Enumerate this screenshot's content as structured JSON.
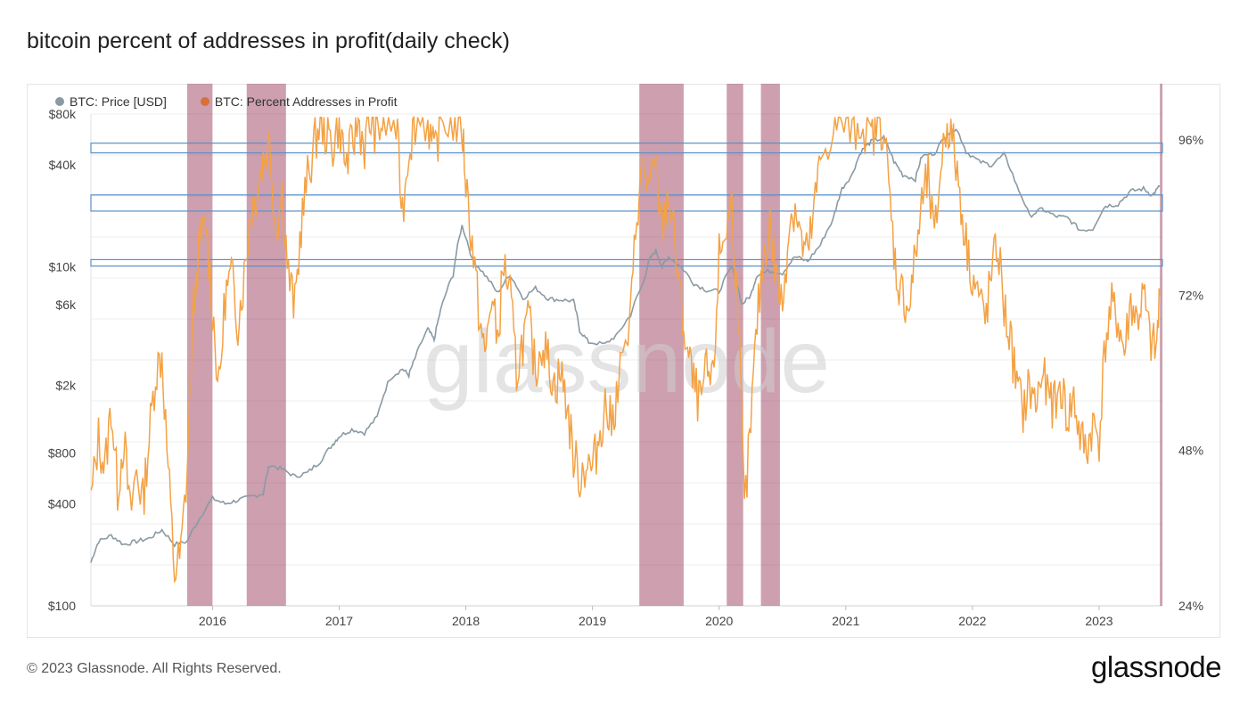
{
  "title": "bitcoin percent of addresses in profit(daily check)",
  "footer": {
    "copyright": "© 2023 Glassnode. All Rights Reserved.",
    "brand": "glassnode"
  },
  "watermark": "glassnode",
  "colors": {
    "price": "#8a9aa3",
    "percent": "#f4a244",
    "percent_legend": "#d9703a",
    "highlight": "#a4506e",
    "box_stroke": "#5b8fc7",
    "grid": "#ececec"
  },
  "chart_data": {
    "type": "line",
    "legend": [
      {
        "name": "BTC: Price [USD]",
        "color": "#8a9aa3"
      },
      {
        "name": "BTC: Percent Addresses in Profit",
        "color": "#d9703a"
      }
    ],
    "x_ticks": [
      "2016",
      "2017",
      "2018",
      "2019",
      "2020",
      "2021",
      "2022",
      "2023"
    ],
    "x_range": [
      2015.04,
      2023.5
    ],
    "y_left": {
      "scale": "log",
      "range": [
        100,
        80000
      ],
      "tick_values": [
        100,
        400,
        800,
        2000,
        6000,
        10000,
        40000,
        80000
      ],
      "tick_labels": [
        "$100",
        "$400",
        "$800",
        "$2k",
        "$6k",
        "$10k",
        "$40k",
        "$80k"
      ]
    },
    "y_right": {
      "range": [
        24,
        100
      ],
      "tick_values": [
        24,
        48,
        72,
        96
      ],
      "tick_labels": [
        "24%",
        "48%",
        "72%",
        "96%"
      ]
    },
    "series": [
      {
        "name": "BTC: Price [USD]",
        "axis": "left",
        "points": [
          [
            2015.04,
            180
          ],
          [
            2015.1,
            240
          ],
          [
            2015.2,
            260
          ],
          [
            2015.3,
            230
          ],
          [
            2015.4,
            240
          ],
          [
            2015.5,
            250
          ],
          [
            2015.6,
            280
          ],
          [
            2015.7,
            230
          ],
          [
            2015.8,
            240
          ],
          [
            2015.9,
            330
          ],
          [
            2016.0,
            430
          ],
          [
            2016.1,
            400
          ],
          [
            2016.2,
            420
          ],
          [
            2016.3,
            440
          ],
          [
            2016.4,
            460
          ],
          [
            2016.45,
            680
          ],
          [
            2016.55,
            640
          ],
          [
            2016.65,
            580
          ],
          [
            2016.75,
            610
          ],
          [
            2016.85,
            710
          ],
          [
            2016.95,
            900
          ],
          [
            2017.0,
            1000
          ],
          [
            2017.1,
            1100
          ],
          [
            2017.2,
            1050
          ],
          [
            2017.3,
            1300
          ],
          [
            2017.4,
            2200
          ],
          [
            2017.5,
            2500
          ],
          [
            2017.55,
            2300
          ],
          [
            2017.6,
            2900
          ],
          [
            2017.7,
            4300
          ],
          [
            2017.75,
            3700
          ],
          [
            2017.8,
            5500
          ],
          [
            2017.9,
            9000
          ],
          [
            2017.97,
            17500
          ],
          [
            2018.05,
            11000
          ],
          [
            2018.15,
            9000
          ],
          [
            2018.25,
            7000
          ],
          [
            2018.35,
            9000
          ],
          [
            2018.45,
            6500
          ],
          [
            2018.55,
            7500
          ],
          [
            2018.65,
            6500
          ],
          [
            2018.75,
            6400
          ],
          [
            2018.85,
            6300
          ],
          [
            2018.9,
            4200
          ],
          [
            2018.97,
            3600
          ],
          [
            2019.1,
            3500
          ],
          [
            2019.2,
            4000
          ],
          [
            2019.3,
            5200
          ],
          [
            2019.4,
            8000
          ],
          [
            2019.45,
            11000
          ],
          [
            2019.5,
            12500
          ],
          [
            2019.55,
            10000
          ],
          [
            2019.6,
            11500
          ],
          [
            2019.7,
            10000
          ],
          [
            2019.8,
            8000
          ],
          [
            2019.9,
            7300
          ],
          [
            2020.0,
            7200
          ],
          [
            2020.1,
            10000
          ],
          [
            2020.18,
            6000
          ],
          [
            2020.25,
            6800
          ],
          [
            2020.3,
            9000
          ],
          [
            2020.4,
            9500
          ],
          [
            2020.5,
            9200
          ],
          [
            2020.6,
            11500
          ],
          [
            2020.7,
            10800
          ],
          [
            2020.8,
            13500
          ],
          [
            2020.9,
            19000
          ],
          [
            2020.97,
            29000
          ],
          [
            2021.05,
            35000
          ],
          [
            2021.12,
            48000
          ],
          [
            2021.2,
            55000
          ],
          [
            2021.3,
            58000
          ],
          [
            2021.38,
            42000
          ],
          [
            2021.45,
            35000
          ],
          [
            2021.55,
            33000
          ],
          [
            2021.6,
            45000
          ],
          [
            2021.7,
            47000
          ],
          [
            2021.8,
            61000
          ],
          [
            2021.87,
            66000
          ],
          [
            2021.95,
            48000
          ],
          [
            2022.05,
            42000
          ],
          [
            2022.15,
            40000
          ],
          [
            2022.25,
            46000
          ],
          [
            2022.35,
            30000
          ],
          [
            2022.45,
            20000
          ],
          [
            2022.55,
            22000
          ],
          [
            2022.65,
            20000
          ],
          [
            2022.75,
            19500
          ],
          [
            2022.85,
            16500
          ],
          [
            2022.95,
            16800
          ],
          [
            2023.05,
            23000
          ],
          [
            2023.15,
            23500
          ],
          [
            2023.25,
            28000
          ],
          [
            2023.35,
            29000
          ],
          [
            2023.42,
            26500
          ],
          [
            2023.48,
            30000
          ]
        ]
      },
      {
        "name": "BTC: Percent Addresses in Profit",
        "axis": "right",
        "points": [
          [
            2015.04,
            40
          ],
          [
            2015.1,
            50
          ],
          [
            2015.15,
            45
          ],
          [
            2015.2,
            55
          ],
          [
            2015.25,
            42
          ],
          [
            2015.3,
            50
          ],
          [
            2015.35,
            38
          ],
          [
            2015.4,
            45
          ],
          [
            2015.45,
            40
          ],
          [
            2015.5,
            50
          ],
          [
            2015.55,
            60
          ],
          [
            2015.6,
            63
          ],
          [
            2015.65,
            45
          ],
          [
            2015.7,
            29
          ],
          [
            2015.75,
            32
          ],
          [
            2015.8,
            45
          ],
          [
            2015.85,
            70
          ],
          [
            2015.9,
            80
          ],
          [
            2015.95,
            83
          ],
          [
            2016.0,
            70
          ],
          [
            2016.05,
            57
          ],
          [
            2016.1,
            72
          ],
          [
            2016.15,
            75
          ],
          [
            2016.2,
            68
          ],
          [
            2016.25,
            75
          ],
          [
            2016.3,
            85
          ],
          [
            2016.35,
            88
          ],
          [
            2016.4,
            93
          ],
          [
            2016.45,
            96
          ],
          [
            2016.5,
            82
          ],
          [
            2016.55,
            88
          ],
          [
            2016.6,
            75
          ],
          [
            2016.65,
            70
          ],
          [
            2016.7,
            83
          ],
          [
            2016.75,
            90
          ],
          [
            2016.8,
            95
          ],
          [
            2016.85,
            99
          ],
          [
            2016.9,
            97
          ],
          [
            2016.95,
            95
          ],
          [
            2017.0,
            99
          ],
          [
            2017.05,
            92
          ],
          [
            2017.1,
            95
          ],
          [
            2017.15,
            99
          ],
          [
            2017.2,
            95
          ],
          [
            2017.25,
            99
          ],
          [
            2017.3,
            97
          ],
          [
            2017.35,
            99
          ],
          [
            2017.45,
            98
          ],
          [
            2017.5,
            85
          ],
          [
            2017.55,
            95
          ],
          [
            2017.6,
            99
          ],
          [
            2017.7,
            99
          ],
          [
            2017.75,
            93
          ],
          [
            2017.8,
            99
          ],
          [
            2017.9,
            99
          ],
          [
            2017.97,
            98
          ],
          [
            2018.0,
            90
          ],
          [
            2018.05,
            80
          ],
          [
            2018.1,
            70
          ],
          [
            2018.15,
            62
          ],
          [
            2018.2,
            72
          ],
          [
            2018.25,
            65
          ],
          [
            2018.3,
            77
          ],
          [
            2018.35,
            72
          ],
          [
            2018.4,
            60
          ],
          [
            2018.45,
            65
          ],
          [
            2018.5,
            68
          ],
          [
            2018.55,
            60
          ],
          [
            2018.6,
            65
          ],
          [
            2018.65,
            62
          ],
          [
            2018.7,
            58
          ],
          [
            2018.75,
            60
          ],
          [
            2018.8,
            55
          ],
          [
            2018.85,
            47
          ],
          [
            2018.9,
            44
          ],
          [
            2018.95,
            46
          ],
          [
            2019.0,
            45
          ],
          [
            2019.05,
            50
          ],
          [
            2019.1,
            55
          ],
          [
            2019.15,
            52
          ],
          [
            2019.2,
            58
          ],
          [
            2019.3,
            68
          ],
          [
            2019.35,
            85
          ],
          [
            2019.4,
            92
          ],
          [
            2019.45,
            88
          ],
          [
            2019.5,
            92
          ],
          [
            2019.55,
            82
          ],
          [
            2019.6,
            88
          ],
          [
            2019.65,
            80
          ],
          [
            2019.7,
            70
          ],
          [
            2019.75,
            63
          ],
          [
            2019.8,
            58
          ],
          [
            2019.85,
            55
          ],
          [
            2019.9,
            60
          ],
          [
            2019.95,
            58
          ],
          [
            2020.0,
            78
          ],
          [
            2020.05,
            82
          ],
          [
            2020.1,
            86
          ],
          [
            2020.15,
            70
          ],
          [
            2020.2,
            38
          ],
          [
            2020.25,
            52
          ],
          [
            2020.3,
            68
          ],
          [
            2020.35,
            78
          ],
          [
            2020.4,
            83
          ],
          [
            2020.45,
            75
          ],
          [
            2020.5,
            70
          ],
          [
            2020.55,
            83
          ],
          [
            2020.6,
            86
          ],
          [
            2020.65,
            80
          ],
          [
            2020.7,
            78
          ],
          [
            2020.75,
            85
          ],
          [
            2020.8,
            93
          ],
          [
            2020.9,
            98
          ],
          [
            2020.97,
            99
          ],
          [
            2021.05,
            97
          ],
          [
            2021.12,
            99
          ],
          [
            2021.2,
            96
          ],
          [
            2021.25,
            99
          ],
          [
            2021.3,
            98
          ],
          [
            2021.35,
            86
          ],
          [
            2021.4,
            75
          ],
          [
            2021.45,
            72
          ],
          [
            2021.5,
            70
          ],
          [
            2021.55,
            78
          ],
          [
            2021.6,
            86
          ],
          [
            2021.65,
            90
          ],
          [
            2021.7,
            80
          ],
          [
            2021.75,
            92
          ],
          [
            2021.8,
            99
          ],
          [
            2021.85,
            95
          ],
          [
            2021.9,
            88
          ],
          [
            2021.95,
            80
          ],
          [
            2022.0,
            75
          ],
          [
            2022.05,
            72
          ],
          [
            2022.1,
            68
          ],
          [
            2022.15,
            75
          ],
          [
            2022.2,
            80
          ],
          [
            2022.25,
            70
          ],
          [
            2022.3,
            65
          ],
          [
            2022.35,
            58
          ],
          [
            2022.4,
            54
          ],
          [
            2022.45,
            58
          ],
          [
            2022.5,
            55
          ],
          [
            2022.55,
            60
          ],
          [
            2022.6,
            56
          ],
          [
            2022.65,
            55
          ],
          [
            2022.7,
            58
          ],
          [
            2022.75,
            53
          ],
          [
            2022.8,
            56
          ],
          [
            2022.85,
            50
          ],
          [
            2022.9,
            48
          ],
          [
            2022.95,
            52
          ],
          [
            2023.0,
            50
          ],
          [
            2023.05,
            65
          ],
          [
            2023.1,
            70
          ],
          [
            2023.15,
            68
          ],
          [
            2023.2,
            63
          ],
          [
            2023.25,
            71
          ],
          [
            2023.3,
            68
          ],
          [
            2023.35,
            72
          ],
          [
            2023.4,
            65
          ],
          [
            2023.45,
            63
          ],
          [
            2023.48,
            72
          ]
        ]
      }
    ],
    "highlight_bands": [
      [
        2015.8,
        2016.0
      ],
      [
        2016.27,
        2016.58
      ],
      [
        2019.37,
        2019.72
      ],
      [
        2020.06,
        2020.19
      ],
      [
        2020.33,
        2020.48
      ],
      [
        2023.48,
        2023.5
      ]
    ],
    "highlight_boxes_percent": [
      [
        94,
        95.5
      ],
      [
        85,
        87.5
      ],
      [
        76.5,
        77.5
      ]
    ]
  }
}
